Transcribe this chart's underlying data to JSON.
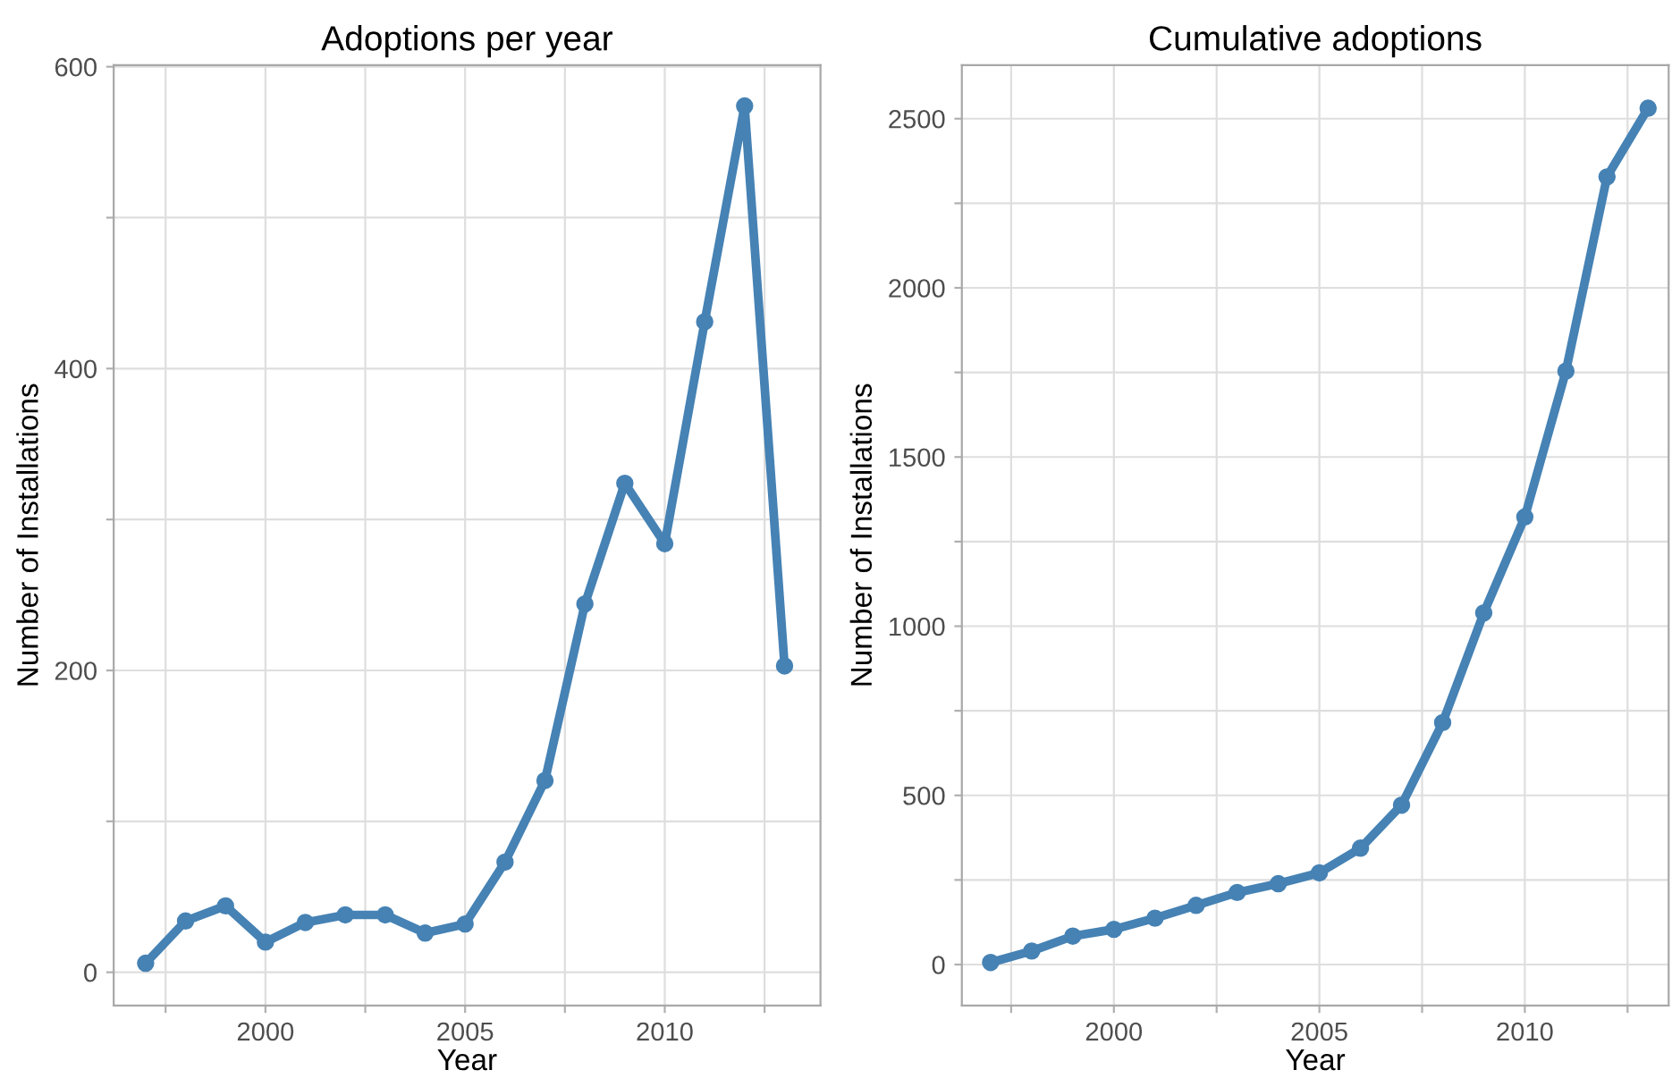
{
  "chart_data": [
    {
      "type": "line",
      "title": "Adoptions per year",
      "xlabel": "Year",
      "ylabel": "Number of Installations",
      "marker": "circle",
      "line_style": "solid",
      "grid": true,
      "x": [
        1997,
        1998,
        1999,
        2000,
        2001,
        2002,
        2003,
        2004,
        2005,
        2006,
        2007,
        2008,
        2009,
        2010,
        2011,
        2012,
        2013
      ],
      "series": [
        {
          "color": "#4682b4",
          "values": [
            6,
            34,
            44,
            20,
            33,
            38,
            38,
            26,
            32,
            73,
            127,
            244,
            324,
            284,
            431,
            574,
            203
          ]
        }
      ],
      "xlim": [
        1996.2,
        2013.9
      ],
      "xticks": [
        {
          "value": 1997.5,
          "label": null
        },
        2000,
        {
          "value": 2002.5,
          "label": null
        },
        2005,
        {
          "value": 2007.5,
          "label": null
        },
        2010,
        {
          "value": 2012.5,
          "label": null
        }
      ],
      "ylim": [
        -22,
        601
      ],
      "yticks": [
        0,
        {
          "value": 100,
          "label": null
        },
        200,
        {
          "value": 300,
          "label": null
        },
        400,
        {
          "value": 500,
          "label": null
        },
        600
      ]
    },
    {
      "type": "line",
      "title": "Cumulative adoptions",
      "xlabel": "Year",
      "ylabel": "Number of Installations",
      "marker": "circle",
      "line_style": "solid",
      "grid": true,
      "x": [
        1997,
        1998,
        1999,
        2000,
        2001,
        2002,
        2003,
        2004,
        2005,
        2006,
        2007,
        2008,
        2009,
        2010,
        2011,
        2012,
        2013
      ],
      "series": [
        {
          "color": "#4682b4",
          "values": [
            6,
            40,
            84,
            104,
            137,
            175,
            213,
            239,
            271,
            344,
            471,
            715,
            1039,
            1323,
            1754,
            2328,
            2531
          ]
        }
      ],
      "xlim": [
        1996.3,
        2013.5
      ],
      "xticks": [
        {
          "value": 1997.5,
          "label": null
        },
        2000,
        {
          "value": 2002.5,
          "label": null
        },
        2005,
        {
          "value": 2007.5,
          "label": null
        },
        2010,
        {
          "value": 2012.5,
          "label": null
        }
      ],
      "ylim": [
        -121,
        2658
      ],
      "yticks": [
        0,
        {
          "value": 250,
          "label": null
        },
        500,
        {
          "value": 750,
          "label": null
        },
        1000,
        {
          "value": 1250,
          "label": null
        },
        1500,
        {
          "value": 1750,
          "label": null
        },
        2000,
        {
          "value": 2250,
          "label": null
        },
        2500
      ]
    }
  ]
}
